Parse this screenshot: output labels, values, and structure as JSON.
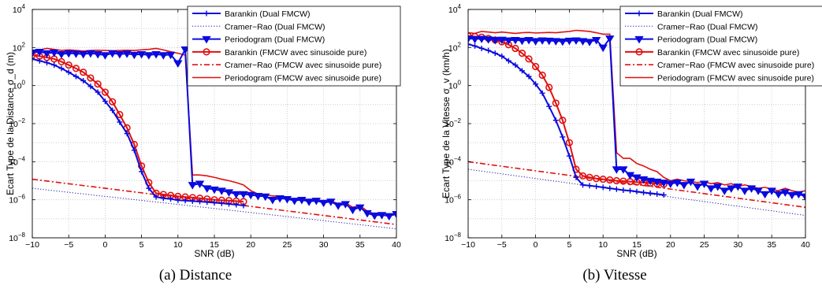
{
  "colors": {
    "blue": "#0a0adf",
    "red": "#e01010",
    "dark_blue": "#1a1aaa"
  },
  "chart_data": [
    {
      "type": "line",
      "caption": "(a) Distance",
      "xlabel": "SNR (dB)",
      "ylabel": "Ecart Type de la Distance   σ_d (m)",
      "xlim": [
        -10,
        40
      ],
      "ylim": [
        1e-08,
        10000.0
      ],
      "yscale": "log",
      "xticks": [
        -10,
        -5,
        0,
        5,
        10,
        15,
        20,
        25,
        30,
        35,
        40
      ],
      "ytick_exponents": [
        -8,
        -6,
        -4,
        -2,
        0,
        2,
        4
      ],
      "grid": true,
      "legend_position": "top-right",
      "series": [
        {
          "name": "Barankin (Dual FMCW)",
          "style": "blue-plus",
          "x": [
            -10,
            -9,
            -8,
            -7,
            -6,
            -5,
            -4,
            -3,
            -2,
            -1,
            0,
            1,
            2,
            3,
            4,
            5,
            6,
            7,
            8,
            9,
            10,
            11,
            12,
            13,
            14,
            15,
            16,
            17,
            18,
            19
          ],
          "y": [
            25,
            20,
            16,
            12,
            8,
            5,
            3,
            1.8,
            0.9,
            0.45,
            0.15,
            0.05,
            0.012,
            0.003,
            0.0004,
            3e-05,
            4e-06,
            1.4e-06,
            1.2e-06,
            1.1e-06,
            9.5e-07,
            9e-07,
            8.5e-07,
            8e-07,
            7.5e-07,
            7e-07,
            6.5e-07,
            6e-07,
            5.5e-07,
            5e-07
          ]
        },
        {
          "name": "Cramer−Rao (Dual FMCW)",
          "style": "blue-dotted",
          "x": [
            -10,
            40
          ],
          "y": [
            4e-06,
            3e-08
          ]
        },
        {
          "name": "Periodogram (Dual FMCW)",
          "style": "blue-triangle",
          "x": [
            -10,
            -9,
            -8,
            -7,
            -6,
            -5,
            -4,
            -3,
            -2,
            -1,
            0,
            1,
            2,
            3,
            4,
            5,
            6,
            7,
            8,
            9,
            10,
            11,
            12,
            13,
            14,
            15,
            16,
            17,
            18,
            19,
            20,
            21,
            22,
            23,
            24,
            25,
            26,
            27,
            28,
            29,
            30,
            31,
            32,
            33,
            34,
            35,
            36,
            37,
            38,
            39,
            40
          ],
          "y": [
            55,
            60,
            50,
            55,
            45,
            50,
            48,
            45,
            50,
            45,
            40,
            50,
            45,
            48,
            42,
            45,
            40,
            45,
            40,
            42,
            15,
            80,
            6e-06,
            7e-06,
            4e-06,
            3.5e-06,
            3e-06,
            2.5e-06,
            2e-06,
            2e-06,
            1.8e-06,
            1.6e-06,
            1.5e-06,
            1e-06,
            1.2e-06,
            1.1e-06,
            9e-07,
            1e-06,
            8e-07,
            9e-07,
            7e-07,
            8e-07,
            5e-07,
            6e-07,
            3e-07,
            4e-07,
            2e-07,
            1.5e-07,
            1.6e-07,
            1.4e-07,
            1.8e-07
          ]
        },
        {
          "name": "Barankin (FMCW avec sinusoide pure)",
          "style": "red-circle",
          "x": [
            -10,
            -9,
            -8,
            -7,
            -6,
            -5,
            -4,
            -3,
            -2,
            -1,
            0,
            1,
            2,
            3,
            4,
            5,
            6,
            7,
            8,
            9,
            10,
            11,
            12,
            13,
            14,
            15,
            16,
            17,
            18,
            19
          ],
          "y": [
            40,
            35,
            30,
            25,
            18,
            12,
            8,
            5,
            2.5,
            1.2,
            0.45,
            0.14,
            0.03,
            0.006,
            0.0008,
            6e-05,
            8e-06,
            2.2e-06,
            1.9e-06,
            1.7e-06,
            1.5e-06,
            1.4e-06,
            1.3e-06,
            1.2e-06,
            1.1e-06,
            1e-06,
            9.5e-07,
            9e-07,
            8.5e-07,
            8e-07
          ]
        },
        {
          "name": "Cramer−Rao (FMCW avec sinusoide pure)",
          "style": "red-dashdot",
          "x": [
            -10,
            40
          ],
          "y": [
            1.2e-05,
            5e-08
          ]
        },
        {
          "name": "Periodogram (FMCW avec sinusoide pure)",
          "style": "red-solid",
          "x": [
            -10,
            -9,
            -8,
            -7,
            -6,
            -5,
            -4,
            -3,
            -2,
            -1,
            0,
            1,
            2,
            3,
            4,
            5,
            6,
            7,
            8,
            9,
            10,
            11,
            12,
            13,
            14,
            15,
            16,
            17,
            18,
            19,
            20,
            21,
            22,
            23,
            24,
            25,
            26,
            27,
            28,
            29,
            30,
            31,
            32,
            33,
            34,
            35,
            36,
            37,
            38,
            39,
            40
          ],
          "y": [
            60,
            75,
            90,
            80,
            70,
            75,
            70,
            65,
            70,
            72,
            70,
            68,
            70,
            72,
            70,
            75,
            80,
            90,
            75,
            60,
            50,
            40,
            2e-05,
            2e-05,
            1.8e-05,
            1.5e-05,
            1.2e-05,
            1e-05,
            8e-06,
            6e-06,
            3e-06,
            2e-06,
            1.8e-06,
            1.6e-06,
            1.5e-06,
            1.3e-06,
            1e-06,
            1.1e-06,
            9e-07,
            1e-06,
            8e-07,
            9e-07,
            6e-07,
            7e-07,
            4e-07,
            5e-07,
            2.5e-07,
            1.8e-07,
            1.6e-07,
            1.5e-07,
            2e-07
          ]
        }
      ]
    },
    {
      "type": "line",
      "caption": "(b) Vitesse",
      "xlabel": "SNR (dB)",
      "ylabel": "Ecart Type de la Vitesse   σ_v (km/h)",
      "xlim": [
        -10,
        40
      ],
      "ylim": [
        1e-08,
        10000.0
      ],
      "yscale": "log",
      "xticks": [
        -10,
        -5,
        0,
        5,
        10,
        15,
        20,
        25,
        30,
        35,
        40
      ],
      "ytick_exponents": [
        -8,
        -6,
        -4,
        -2,
        0,
        2,
        4
      ],
      "grid": true,
      "legend_position": "top-right",
      "series": [
        {
          "name": "Barankin (Dual FMCW)",
          "style": "blue-plus",
          "x": [
            -10,
            -9,
            -8,
            -7,
            -6,
            -5,
            -4,
            -3,
            -2,
            -1,
            0,
            1,
            2,
            3,
            4,
            5,
            6,
            7,
            8,
            9,
            10,
            11,
            12,
            13,
            14,
            15,
            16,
            17,
            18,
            19
          ],
          "y": [
            150,
            120,
            90,
            70,
            50,
            35,
            20,
            12,
            6,
            3,
            1.2,
            0.4,
            0.08,
            0.015,
            0.002,
            0.0002,
            1.5e-05,
            6e-06,
            5.5e-06,
            5e-06,
            4.5e-06,
            4e-06,
            3.6e-06,
            3.2e-06,
            3e-06,
            2.7e-06,
            2.4e-06,
            2.2e-06,
            2e-06,
            1.8e-06
          ]
        },
        {
          "name": "Cramer−Rao (Dual FMCW)",
          "style": "blue-dotted",
          "x": [
            -10,
            40
          ],
          "y": [
            4e-05,
            1.5e-07
          ]
        },
        {
          "name": "Periodogram (Dual FMCW)",
          "style": "blue-triangle",
          "x": [
            -10,
            -9,
            -8,
            -7,
            -6,
            -5,
            -4,
            -3,
            -2,
            -1,
            0,
            1,
            2,
            3,
            4,
            5,
            6,
            7,
            8,
            9,
            10,
            11,
            12,
            13,
            14,
            15,
            16,
            17,
            18,
            19,
            20,
            21,
            22,
            23,
            24,
            25,
            26,
            27,
            28,
            29,
            30,
            31,
            32,
            33,
            34,
            35,
            36,
            37,
            38,
            39,
            40
          ],
          "y": [
            300,
            280,
            290,
            270,
            250,
            260,
            240,
            250,
            230,
            250,
            220,
            240,
            230,
            220,
            210,
            230,
            240,
            220,
            200,
            250,
            100,
            300,
            4e-05,
            4e-05,
            2e-05,
            1.5e-05,
            1.2e-05,
            1e-05,
            9e-06,
            8e-06,
            7e-06,
            8e-06,
            6e-06,
            9e-06,
            5e-06,
            7e-06,
            4e-06,
            5e-06,
            3e-06,
            4e-06,
            5e-06,
            3e-06,
            4e-06,
            3e-06,
            2e-06,
            3e-06,
            2e-06,
            2.5e-06,
            1.8e-06,
            2e-06,
            1.5e-06
          ]
        },
        {
          "name": "Barankin (FMCW avec sinusoide pure)",
          "style": "red-circle",
          "x": [
            -10,
            -9,
            -8,
            -7,
            -6,
            -5,
            -4,
            -3,
            -2,
            -1,
            0,
            1,
            2,
            3,
            4,
            5,
            6,
            7,
            8,
            9,
            10,
            11,
            12,
            13,
            14,
            15,
            16,
            17,
            18,
            19
          ],
          "y": [
            400,
            380,
            350,
            300,
            250,
            200,
            140,
            90,
            50,
            25,
            10,
            3.5,
            0.8,
            0.12,
            0.015,
            0.001,
            4e-05,
            1.8e-05,
            1.5e-05,
            1.3e-05,
            1.2e-05,
            1.1e-05,
            1e-05,
            9.5e-06,
            9e-06,
            8.5e-06,
            8e-06,
            7.5e-06,
            7e-06,
            6.5e-06
          ]
        },
        {
          "name": "Cramer−Rao (FMCW avec sinusoide pure)",
          "style": "red-dashdot",
          "x": [
            -10,
            40
          ],
          "y": [
            0.0001,
            4e-07
          ]
        },
        {
          "name": "Periodogram (FMCW avec sinusoide pure)",
          "style": "red-solid",
          "x": [
            -10,
            -9,
            -8,
            -7,
            -6,
            -5,
            -4,
            -3,
            -2,
            -1,
            0,
            1,
            2,
            3,
            4,
            5,
            6,
            7,
            8,
            9,
            10,
            11,
            12,
            13,
            14,
            15,
            16,
            17,
            18,
            19,
            20,
            21,
            22,
            23,
            24,
            25,
            26,
            27,
            28,
            29,
            30,
            31,
            32,
            33,
            34,
            35,
            36,
            37,
            38,
            39,
            40
          ],
          "y": [
            600,
            550,
            700,
            650,
            600,
            650,
            600,
            550,
            600,
            620,
            580,
            600,
            620,
            600,
            650,
            700,
            800,
            750,
            700,
            600,
            500,
            500,
            0.0003,
            0.00015,
            0.00015,
            8e-05,
            6e-05,
            4e-05,
            3e-05,
            1.5e-05,
            1e-05,
            1.2e-05,
            1e-05,
            9e-06,
            8e-06,
            9e-06,
            7e-06,
            8e-06,
            6e-06,
            7e-06,
            5e-06,
            6e-06,
            5e-06,
            4e-06,
            4.5e-06,
            3.5e-06,
            3e-06,
            4e-06,
            3e-06,
            2.5e-06,
            3e-06
          ]
        }
      ]
    }
  ]
}
